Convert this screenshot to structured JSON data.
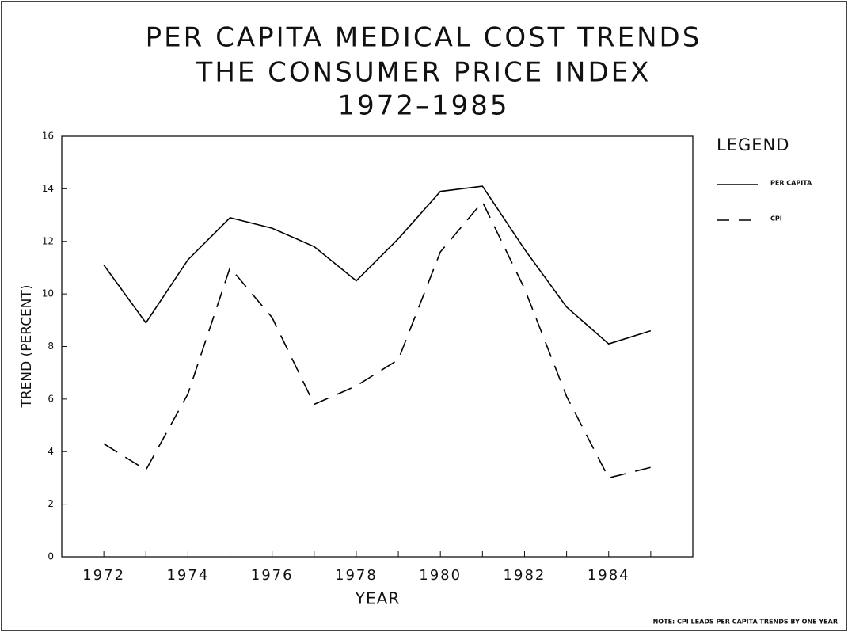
{
  "chart_data": {
    "type": "line",
    "title": [
      "PER CAPITA MEDICAL COST TRENDS",
      "THE CONSUMER PRICE INDEX",
      "1972–1985"
    ],
    "x_label": "YEAR",
    "y_label": "TREND (PERCENT)",
    "legend_title": "LEGEND",
    "legend": "right",
    "note": "NOTE: CPI LEADS PER CAPITA TRENDS BY ONE YEAR",
    "x": [
      1972,
      1973,
      1974,
      1975,
      1976,
      1977,
      1978,
      1979,
      1980,
      1981,
      1982,
      1983,
      1984,
      1985
    ],
    "series": [
      {
        "name": "PER CAPITA",
        "color": "#000000",
        "line_style": "solid",
        "values": [
          11.1,
          8.9,
          11.3,
          12.9,
          12.5,
          11.8,
          10.5,
          12.1,
          13.9,
          14.1,
          11.7,
          9.5,
          8.1,
          8.6
        ]
      },
      {
        "name": "CPI",
        "color": "#000000",
        "line_style": "dashed",
        "values": [
          4.3,
          3.3,
          6.2,
          11.0,
          9.1,
          5.8,
          6.5,
          7.5,
          11.6,
          13.5,
          10.2,
          6.1,
          3.0,
          3.4
        ]
      }
    ],
    "xlim": [
      1971,
      1986
    ],
    "xticks": [
      1972,
      1974,
      1976,
      1978,
      1980,
      1982,
      1984
    ],
    "xminor_ticks": [
      1973,
      1975,
      1977,
      1979,
      1981,
      1983,
      1985
    ],
    "ylim": [
      0,
      16
    ],
    "yticks": [
      0,
      2,
      4,
      6,
      8,
      10,
      12,
      14,
      16
    ],
    "grid": false
  }
}
